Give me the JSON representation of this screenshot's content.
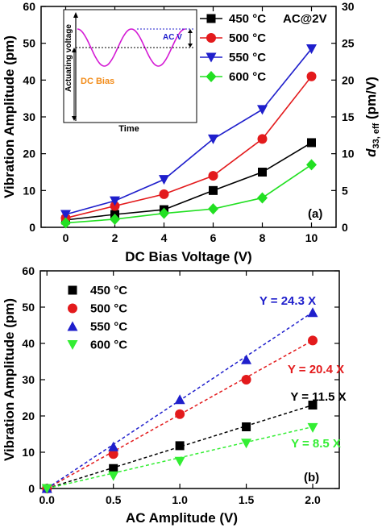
{
  "chart_data": [
    {
      "type": "line",
      "panel_label": "(a)",
      "xlabel": "DC Bias Voltage (V)",
      "ylabel": "Vibration Amplitude (pm)",
      "y2label": "d33, eff (pm/V)",
      "y2label_main": "d",
      "y2label_sub": "33, eff",
      "y2label_rest": " (pm/V)",
      "xlim": [
        -1,
        11
      ],
      "ylim": [
        0,
        60
      ],
      "y2lim": [
        0,
        30
      ],
      "xticks": [
        "0",
        "2",
        "4",
        "6",
        "8",
        "10"
      ],
      "yticks": [
        "0",
        "10",
        "20",
        "30",
        "40",
        "50",
        "60"
      ],
      "y2ticks": [
        "0",
        "5",
        "10",
        "15",
        "20",
        "25",
        "30"
      ],
      "annotation": "AC@2V",
      "legend_position": "top-right",
      "x": [
        0,
        2,
        4,
        6,
        8,
        10
      ],
      "series": [
        {
          "name": "450 °C",
          "marker": "square",
          "color": "#000000",
          "values": [
            2,
            3.5,
            4.8,
            10,
            15,
            23
          ]
        },
        {
          "name": "500 °C",
          "marker": "circle",
          "color": "#e31a1c",
          "values": [
            2.5,
            5.8,
            9,
            14,
            24,
            41
          ]
        },
        {
          "name": "550 °C",
          "marker": "triangle-down",
          "color": "#1f1fcc",
          "values": [
            3.5,
            7.2,
            13,
            24,
            32,
            48.5
          ]
        },
        {
          "name": "600 °C",
          "marker": "diamond",
          "color": "#22e022",
          "values": [
            1.2,
            2.2,
            3.8,
            5,
            8,
            17
          ]
        }
      ],
      "inset": {
        "ylabel": "Actuating voltage",
        "xlabel": "Time",
        "ac_label": "AC V",
        "dc_label": "DC Bias",
        "wave_color": "#d41ad4",
        "dc_label_color": "#f28c1a",
        "ac_label_color": "#1f1fcc"
      }
    },
    {
      "type": "scatter",
      "panel_label": "(b)",
      "xlabel": "AC Amplitude (V)",
      "ylabel": "Vibration Amplitude (pm)",
      "xlim": [
        -0.05,
        2.2
      ],
      "ylim": [
        0,
        60
      ],
      "xticks": [
        "0.0",
        "0.5",
        "1.0",
        "1.5",
        "2.0"
      ],
      "yticks": [
        "0",
        "10",
        "20",
        "30",
        "40",
        "50",
        "60"
      ],
      "legend_position": "top-left",
      "x": [
        0,
        0.5,
        1.0,
        1.5,
        2.0
      ],
      "series": [
        {
          "name": "450 °C",
          "marker": "square",
          "color": "#000000",
          "values": [
            0,
            5.5,
            11.8,
            17,
            23
          ],
          "fit_label": "Y = 11.5 X",
          "slope": 11.5
        },
        {
          "name": "500 °C",
          "marker": "circle",
          "color": "#e31a1c",
          "values": [
            0,
            9.5,
            20.5,
            30,
            40.8
          ],
          "fit_label": "Y = 20.4 X",
          "slope": 20.4
        },
        {
          "name": "550 °C",
          "marker": "triangle-up",
          "color": "#1f1fcc",
          "values": [
            0,
            11.5,
            24.5,
            35.5,
            48.5
          ],
          "fit_label": "Y = 24.3 X",
          "slope": 24.3
        },
        {
          "name": "600 °C",
          "marker": "triangle-down",
          "color": "#33ee33",
          "values": [
            0,
            3.5,
            7.5,
            12.5,
            16.8
          ],
          "fit_label": "Y = 8.5 X",
          "slope": 8.5
        }
      ]
    }
  ]
}
